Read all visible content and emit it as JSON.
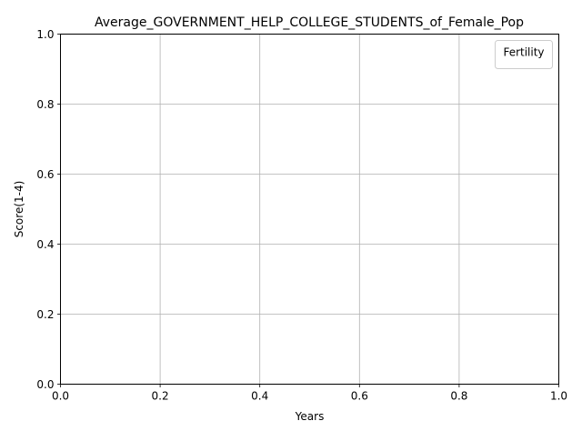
{
  "chart_data": {
    "type": "line",
    "title": "Average_GOVERNMENT_HELP_COLLEGE_STUDENTS_of_Female_Pop",
    "xlabel": "Years",
    "ylabel": "Score(1-4)",
    "xlim": [
      0.0,
      1.0
    ],
    "ylim": [
      0.0,
      1.0
    ],
    "x_ticks": [
      "0.0",
      "0.2",
      "0.4",
      "0.6",
      "0.8",
      "1.0"
    ],
    "y_ticks": [
      "0.0",
      "0.2",
      "0.4",
      "0.6",
      "0.8",
      "1.0"
    ],
    "grid": true,
    "legend": {
      "title": "Fertility",
      "placement": "top-right",
      "entries": []
    },
    "series": []
  }
}
